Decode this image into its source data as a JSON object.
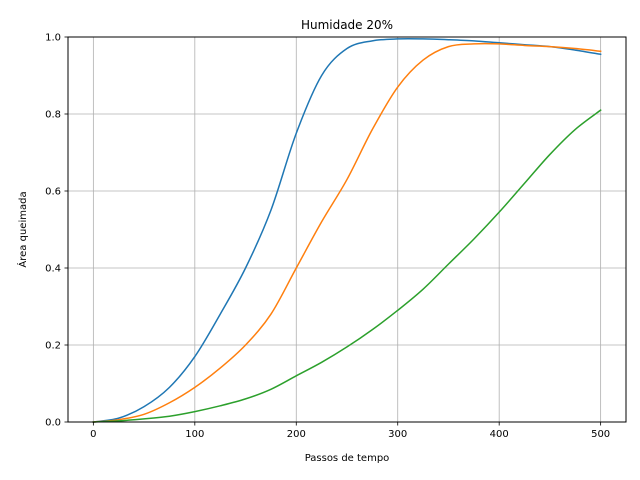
{
  "chart_data": {
    "type": "line",
    "title": "Humidade 20%",
    "xlabel": "Passos de tempo",
    "ylabel": "Área queimada",
    "xlim": [
      -25,
      525
    ],
    "ylim": [
      0,
      1.0
    ],
    "x_ticks": [
      0,
      100,
      200,
      300,
      400,
      500
    ],
    "y_ticks": [
      0.0,
      0.2,
      0.4,
      0.6,
      0.8,
      1.0
    ],
    "x_tick_labels": [
      "0",
      "100",
      "200",
      "300",
      "400",
      "500"
    ],
    "y_tick_labels": [
      "0.0",
      "0.2",
      "0.4",
      "0.6",
      "0.8",
      "1.0"
    ],
    "grid": true,
    "x": [
      0,
      25,
      50,
      75,
      100,
      125,
      150,
      175,
      200,
      225,
      250,
      275,
      300,
      325,
      350,
      375,
      400,
      425,
      450,
      475,
      500
    ],
    "series": [
      {
        "color": "#1f77b4",
        "values": [
          0.0,
          0.01,
          0.04,
          0.09,
          0.17,
          0.28,
          0.4,
          0.55,
          0.75,
          0.9,
          0.97,
          0.99,
          0.995,
          0.995,
          0.993,
          0.99,
          0.985,
          0.98,
          0.975,
          0.966,
          0.955
        ]
      },
      {
        "color": "#ff7f0e",
        "values": [
          0.0,
          0.006,
          0.02,
          0.05,
          0.09,
          0.14,
          0.2,
          0.28,
          0.4,
          0.52,
          0.63,
          0.76,
          0.87,
          0.94,
          0.975,
          0.982,
          0.982,
          0.978,
          0.975,
          0.97,
          0.963
        ]
      },
      {
        "color": "#2ca02c",
        "values": [
          0.0,
          0.003,
          0.008,
          0.015,
          0.027,
          0.042,
          0.06,
          0.085,
          0.12,
          0.155,
          0.195,
          0.24,
          0.29,
          0.345,
          0.41,
          0.475,
          0.545,
          0.62,
          0.695,
          0.76,
          0.81
        ]
      }
    ]
  }
}
